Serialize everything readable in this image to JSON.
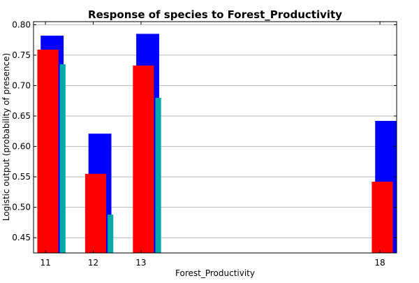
{
  "chart_data": {
    "type": "bar",
    "title": "Response of species to Forest_Productivity",
    "xlabel": "Forest_Productivity",
    "ylabel": "Logistic output (probability of presence)",
    "categories": [
      "11",
      "12",
      "13",
      "18"
    ],
    "x": [
      11,
      12,
      13,
      18
    ],
    "xlim": [
      10.75,
      18.35
    ],
    "ylim": [
      0.425,
      0.805
    ],
    "yticks": [
      "0.45",
      "0.50",
      "0.55",
      "0.60",
      "0.65",
      "0.70",
      "0.75",
      "0.80"
    ],
    "grid": "horizontal",
    "series": [
      {
        "color": "#0000ff",
        "values": [
          0.782,
          0.621,
          0.785,
          0.642
        ]
      },
      {
        "color": "#00aaaa",
        "values": [
          0.735,
          0.488,
          0.68,
          null
        ]
      },
      {
        "color": "#ff0000",
        "values": [
          0.759,
          0.555,
          0.733,
          0.542
        ]
      }
    ]
  }
}
